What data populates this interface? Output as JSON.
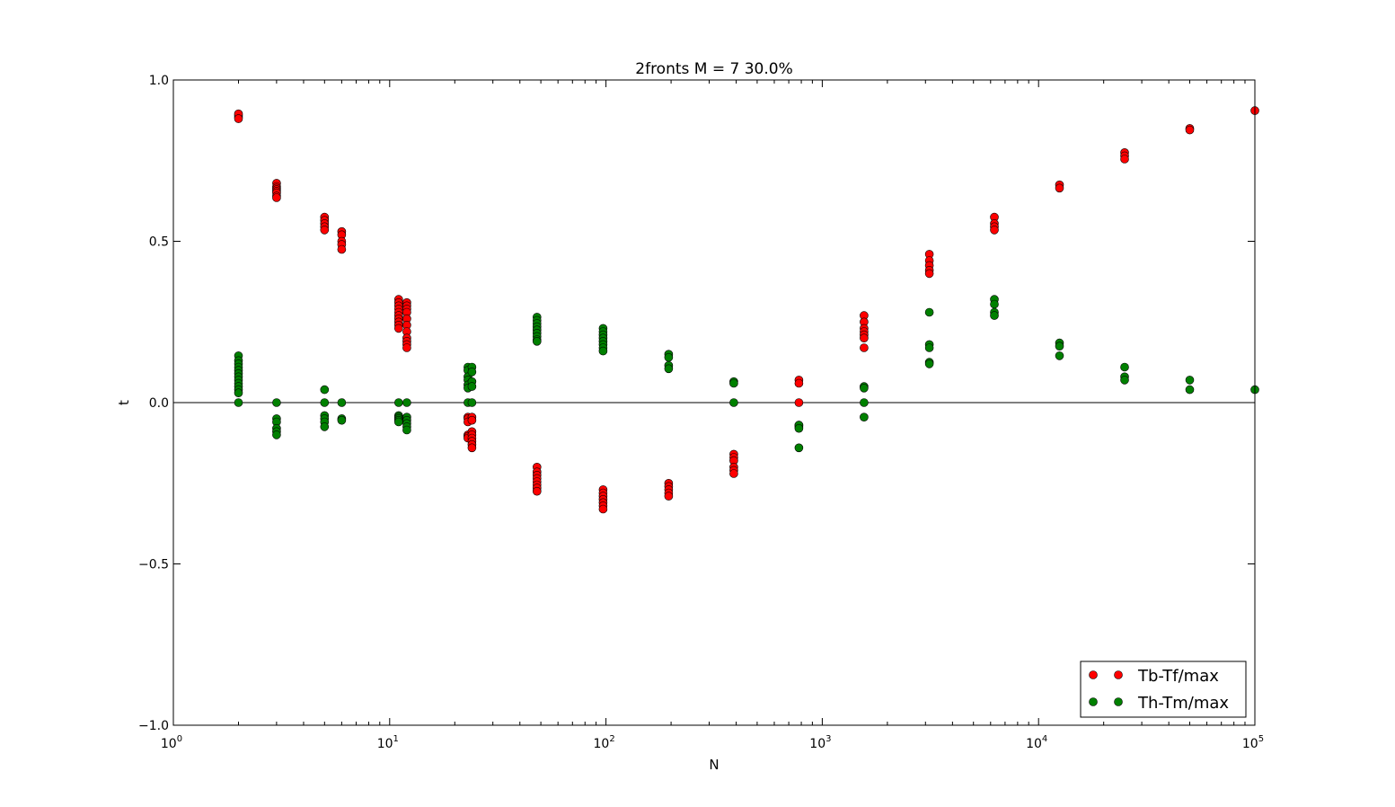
{
  "chart_data": {
    "type": "scatter",
    "title": "2fronts M = 7 30.0%",
    "xlabel": "N",
    "ylabel": "t",
    "xscale": "log",
    "xlim": [
      1,
      100000
    ],
    "ylim": [
      -1.0,
      1.0
    ],
    "x_ticks": [
      {
        "value": 1,
        "base": "10",
        "exp": "0"
      },
      {
        "value": 10,
        "base": "10",
        "exp": "1"
      },
      {
        "value": 100,
        "base": "10",
        "exp": "2"
      },
      {
        "value": 1000,
        "base": "10",
        "exp": "3"
      },
      {
        "value": 10000,
        "base": "10",
        "exp": "4"
      },
      {
        "value": 100000,
        "base": "10",
        "exp": "5"
      }
    ],
    "y_ticks": [
      {
        "value": 1.0,
        "label": "1.0"
      },
      {
        "value": 0.5,
        "label": "0.5"
      },
      {
        "value": 0.0,
        "label": "0.0"
      },
      {
        "value": -0.5,
        "label": "−0.5"
      },
      {
        "value": -1.0,
        "label": "−1.0"
      }
    ],
    "zero_line": true,
    "grid": false,
    "legend_position": "bottom-right",
    "series": [
      {
        "name": "Tb-Tf/max",
        "color": "#ff0000",
        "points": [
          [
            2,
            0.89
          ],
          [
            2,
            0.885
          ],
          [
            2,
            0.895
          ],
          [
            2,
            0.88
          ],
          [
            3,
            0.68
          ],
          [
            3,
            0.67
          ],
          [
            3,
            0.665
          ],
          [
            3,
            0.66
          ],
          [
            3,
            0.655
          ],
          [
            3,
            0.65
          ],
          [
            3,
            0.64
          ],
          [
            3,
            0.635
          ],
          [
            5,
            0.575
          ],
          [
            5,
            0.565
          ],
          [
            5,
            0.555
          ],
          [
            5,
            0.545
          ],
          [
            5,
            0.535
          ],
          [
            6,
            0.53
          ],
          [
            6,
            0.52
          ],
          [
            6,
            0.5
          ],
          [
            6,
            0.49
          ],
          [
            6,
            0.475
          ],
          [
            11,
            0.32
          ],
          [
            11,
            0.31
          ],
          [
            11,
            0.3
          ],
          [
            11,
            0.29
          ],
          [
            11,
            0.28
          ],
          [
            11,
            0.27
          ],
          [
            11,
            0.26
          ],
          [
            11,
            0.25
          ],
          [
            11,
            0.24
          ],
          [
            11,
            0.23
          ],
          [
            12,
            0.31
          ],
          [
            12,
            0.3
          ],
          [
            12,
            0.29
          ],
          [
            12,
            0.28
          ],
          [
            12,
            0.26
          ],
          [
            12,
            0.24
          ],
          [
            12,
            0.22
          ],
          [
            12,
            0.2
          ],
          [
            12,
            0.19
          ],
          [
            12,
            0.18
          ],
          [
            12,
            0.17
          ],
          [
            23,
            -0.045
          ],
          [
            23,
            -0.05
          ],
          [
            23,
            -0.06
          ],
          [
            23,
            -0.1
          ],
          [
            23,
            -0.105
          ],
          [
            23,
            -0.11
          ],
          [
            24,
            -0.045
          ],
          [
            24,
            -0.055
          ],
          [
            24,
            -0.09
          ],
          [
            24,
            -0.1
          ],
          [
            24,
            -0.11
          ],
          [
            24,
            -0.12
          ],
          [
            24,
            -0.13
          ],
          [
            24,
            -0.14
          ],
          [
            48,
            -0.2
          ],
          [
            48,
            -0.215
          ],
          [
            48,
            -0.225
          ],
          [
            48,
            -0.235
          ],
          [
            48,
            -0.245
          ],
          [
            48,
            -0.255
          ],
          [
            48,
            -0.265
          ],
          [
            48,
            -0.275
          ],
          [
            97,
            -0.27
          ],
          [
            97,
            -0.28
          ],
          [
            97,
            -0.29
          ],
          [
            97,
            -0.3
          ],
          [
            97,
            -0.31
          ],
          [
            97,
            -0.32
          ],
          [
            97,
            -0.33
          ],
          [
            195,
            -0.25
          ],
          [
            195,
            -0.26
          ],
          [
            195,
            -0.27
          ],
          [
            195,
            -0.28
          ],
          [
            195,
            -0.29
          ],
          [
            390,
            -0.16
          ],
          [
            390,
            -0.17
          ],
          [
            390,
            -0.18
          ],
          [
            390,
            -0.2
          ],
          [
            390,
            -0.21
          ],
          [
            390,
            -0.22
          ],
          [
            780,
            0.07
          ],
          [
            780,
            0.06
          ],
          [
            780,
            0.0
          ],
          [
            780,
            -0.07
          ],
          [
            780,
            -0.075
          ],
          [
            1560,
            0.27
          ],
          [
            1560,
            0.25
          ],
          [
            1560,
            0.23
          ],
          [
            1560,
            0.22
          ],
          [
            1560,
            0.21
          ],
          [
            1560,
            0.2
          ],
          [
            1560,
            0.17
          ],
          [
            3125,
            0.46
          ],
          [
            3125,
            0.44
          ],
          [
            3125,
            0.425
          ],
          [
            3125,
            0.41
          ],
          [
            3125,
            0.4
          ],
          [
            6250,
            0.575
          ],
          [
            6250,
            0.555
          ],
          [
            6250,
            0.545
          ],
          [
            6250,
            0.535
          ],
          [
            12500,
            0.675
          ],
          [
            12500,
            0.665
          ],
          [
            25000,
            0.775
          ],
          [
            25000,
            0.765
          ],
          [
            25000,
            0.755
          ],
          [
            50000,
            0.85
          ],
          [
            50000,
            0.845
          ],
          [
            100000,
            0.905
          ]
        ]
      },
      {
        "name": "Th-Tm/max",
        "color": "#008000",
        "points": [
          [
            2,
            0.145
          ],
          [
            2,
            0.13
          ],
          [
            2,
            0.12
          ],
          [
            2,
            0.11
          ],
          [
            2,
            0.1
          ],
          [
            2,
            0.09
          ],
          [
            2,
            0.08
          ],
          [
            2,
            0.07
          ],
          [
            2,
            0.06
          ],
          [
            2,
            0.05
          ],
          [
            2,
            0.04
          ],
          [
            2,
            0.03
          ],
          [
            2,
            0.0
          ],
          [
            3,
            0.0
          ],
          [
            3,
            -0.05
          ],
          [
            3,
            -0.06
          ],
          [
            3,
            -0.08
          ],
          [
            3,
            -0.09
          ],
          [
            3,
            -0.1
          ],
          [
            5,
            0.04
          ],
          [
            5,
            0.0
          ],
          [
            5,
            -0.04
          ],
          [
            5,
            -0.05
          ],
          [
            5,
            -0.06
          ],
          [
            5,
            -0.075
          ],
          [
            6,
            0.0
          ],
          [
            6,
            -0.05
          ],
          [
            6,
            -0.055
          ],
          [
            11,
            0.0
          ],
          [
            11,
            -0.04
          ],
          [
            11,
            -0.045
          ],
          [
            11,
            -0.05
          ],
          [
            11,
            -0.055
          ],
          [
            11,
            -0.06
          ],
          [
            12,
            0.0
          ],
          [
            12,
            -0.045
          ],
          [
            12,
            -0.055
          ],
          [
            12,
            -0.065
          ],
          [
            12,
            -0.075
          ],
          [
            12,
            -0.085
          ],
          [
            23,
            0.11
          ],
          [
            23,
            0.1
          ],
          [
            23,
            0.08
          ],
          [
            23,
            0.07
          ],
          [
            23,
            0.055
          ],
          [
            23,
            0.045
          ],
          [
            23,
            0.0
          ],
          [
            24,
            0.11
          ],
          [
            24,
            0.095
          ],
          [
            24,
            0.065
          ],
          [
            24,
            0.05
          ],
          [
            24,
            0.0
          ],
          [
            48,
            0.265
          ],
          [
            48,
            0.255
          ],
          [
            48,
            0.245
          ],
          [
            48,
            0.235
          ],
          [
            48,
            0.225
          ],
          [
            48,
            0.215
          ],
          [
            48,
            0.205
          ],
          [
            48,
            0.195
          ],
          [
            48,
            0.19
          ],
          [
            97,
            0.23
          ],
          [
            97,
            0.22
          ],
          [
            97,
            0.21
          ],
          [
            97,
            0.2
          ],
          [
            97,
            0.19
          ],
          [
            97,
            0.18
          ],
          [
            97,
            0.17
          ],
          [
            97,
            0.16
          ],
          [
            195,
            0.15
          ],
          [
            195,
            0.14
          ],
          [
            195,
            0.115
          ],
          [
            195,
            0.105
          ],
          [
            390,
            0.065
          ],
          [
            390,
            0.06
          ],
          [
            390,
            0.0
          ],
          [
            780,
            -0.07
          ],
          [
            780,
            -0.08
          ],
          [
            780,
            -0.14
          ],
          [
            1560,
            0.05
          ],
          [
            1560,
            0.045
          ],
          [
            1560,
            0.0
          ],
          [
            1560,
            -0.045
          ],
          [
            3125,
            0.28
          ],
          [
            3125,
            0.18
          ],
          [
            3125,
            0.17
          ],
          [
            3125,
            0.125
          ],
          [
            3125,
            0.12
          ],
          [
            6250,
            0.32
          ],
          [
            6250,
            0.305
          ],
          [
            6250,
            0.28
          ],
          [
            6250,
            0.27
          ],
          [
            12500,
            0.185
          ],
          [
            12500,
            0.175
          ],
          [
            12500,
            0.145
          ],
          [
            25000,
            0.11
          ],
          [
            25000,
            0.08
          ],
          [
            25000,
            0.07
          ],
          [
            50000,
            0.07
          ],
          [
            50000,
            0.04
          ],
          [
            100000,
            0.04
          ]
        ]
      }
    ]
  }
}
